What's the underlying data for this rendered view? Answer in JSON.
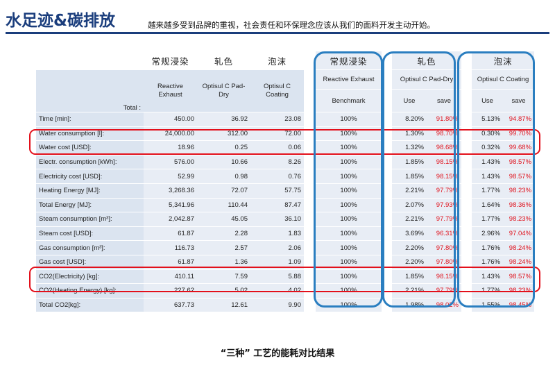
{
  "header": {
    "title": "水足迹&碳排放",
    "subtitle": "越来越多受到品牌的重视，社会责任和环保理念应该从我们的面料开发主动开始。"
  },
  "table": {
    "zh_headers": [
      "常规浸染",
      "轧色",
      "泡沫",
      "常规浸染",
      "轧色",
      "泡沫"
    ],
    "total_label": "Total :",
    "col_headers": [
      "Reactive Exhaust",
      "Optisul C Pad-Dry",
      "Optisul C Coating"
    ],
    "pct_headers": [
      "Reactive Exhaust",
      "Optisul C Pad-Dry",
      "Optisul C Coating"
    ],
    "benchmark_label": "Benchmark",
    "use_label": "Use",
    "save_label": "save",
    "rows": [
      {
        "label": "Time [min]:",
        "v": [
          "450.00",
          "36.92",
          "23.08"
        ],
        "bench": "100%",
        "p": [
          "8.20%",
          "91.80%",
          "5.13%",
          "94.87%"
        ]
      },
      {
        "label": "Water consumption [l]:",
        "v": [
          "24,000.00",
          "312.00",
          "72.00"
        ],
        "bench": "100%",
        "p": [
          "1.30%",
          "98.70%",
          "0.30%",
          "99.70%"
        ]
      },
      {
        "label": "Water cost [USD]:",
        "v": [
          "18.96",
          "0.25",
          "0.06"
        ],
        "bench": "100%",
        "p": [
          "1.32%",
          "98.68%",
          "0.32%",
          "99.68%"
        ]
      },
      {
        "label": "Electr. consumption [kWh]:",
        "v": [
          "576.00",
          "10.66",
          "8.26"
        ],
        "bench": "100%",
        "p": [
          "1.85%",
          "98.15%",
          "1.43%",
          "98.57%"
        ]
      },
      {
        "label": "Electricity cost [USD]:",
        "v": [
          "52.99",
          "0.98",
          "0.76"
        ],
        "bench": "100%",
        "p": [
          "1.85%",
          "98.15%",
          "1.43%",
          "98.57%"
        ]
      },
      {
        "label": "Heating Energy [MJ]:",
        "v": [
          "3,268.36",
          "72.07",
          "57.75"
        ],
        "bench": "100%",
        "p": [
          "2.21%",
          "97.79%",
          "1.77%",
          "98.23%"
        ]
      },
      {
        "label": "Total Energy [MJ]:",
        "v": [
          "5,341.96",
          "110.44",
          "87.47"
        ],
        "bench": "100%",
        "p": [
          "2.07%",
          "97.93%",
          "1.64%",
          "98.36%"
        ]
      },
      {
        "label": "Steam consumption [m³]:",
        "v": [
          "2,042.87",
          "45.05",
          "36.10"
        ],
        "bench": "100%",
        "p": [
          "2.21%",
          "97.79%",
          "1.77%",
          "98.23%"
        ]
      },
      {
        "label": "Steam cost [USD]:",
        "v": [
          "61.87",
          "2.28",
          "1.83"
        ],
        "bench": "100%",
        "p": [
          "3.69%",
          "96.31%",
          "2.96%",
          "97.04%"
        ]
      },
      {
        "label": "Gas consumption [m³]:",
        "v": [
          "116.73",
          "2.57",
          "2.06"
        ],
        "bench": "100%",
        "p": [
          "2.20%",
          "97.80%",
          "1.76%",
          "98.24%"
        ]
      },
      {
        "label": "Gas cost [USD]:",
        "v": [
          "61.87",
          "1.36",
          "1.09"
        ],
        "bench": "100%",
        "p": [
          "2.20%",
          "97.80%",
          "1.76%",
          "98.24%"
        ]
      },
      {
        "label": "CO2(Electricity) [kg]:",
        "v": [
          "410.11",
          "7.59",
          "5.88"
        ],
        "bench": "100%",
        "p": [
          "1.85%",
          "98.15%",
          "1.43%",
          "98.57%"
        ]
      },
      {
        "label": "CO2(Heating Energy) [kg]:",
        "v": [
          "227.62",
          "5.02",
          "4.02"
        ],
        "bench": "100%",
        "p": [
          "2.21%",
          "97.79%",
          "1.77%",
          "98.23%"
        ]
      },
      {
        "label": "Total CO2[kg]:",
        "v": [
          "637.73",
          "12.61",
          "9.90"
        ],
        "bench": "100%",
        "p": [
          "1.98%",
          "98.02%",
          "1.55%",
          "98.45%"
        ]
      }
    ]
  },
  "caption": "“三种”  工艺的能耗对比结果",
  "colors": {
    "title": "#1a3d7c",
    "highlight_red": "#e3101b",
    "highlight_blue": "#2a7ec0",
    "save_text": "#e0141e"
  }
}
